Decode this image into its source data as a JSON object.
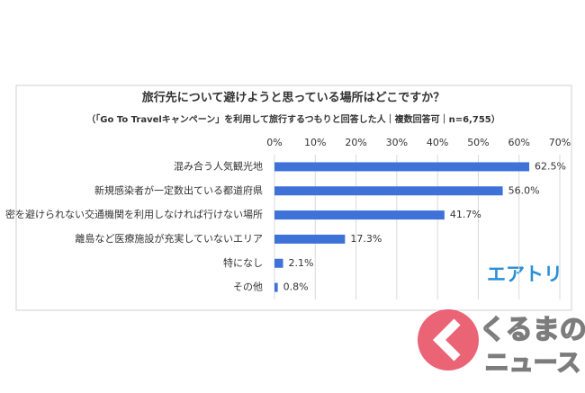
{
  "chart_data": {
    "type": "hbar",
    "title": "旅行先について避けようと思っている場所はどこですか？",
    "subtitle": "（「Go To Travelキャンペーン」を利用して旅行するつもりと回答した人｜複数回答可｜n=6,755）",
    "categories": [
      "混み合う人気観光地",
      "新規感染者が一定数出ている都道府県",
      "密を避けられない交通機関を利用しなければ行けない場所",
      "離島など医療施設が充実していないエリア",
      "特になし",
      "その他"
    ],
    "values": [
      62.5,
      56.0,
      41.7,
      17.3,
      2.1,
      0.8
    ],
    "value_labels": [
      "62.5%",
      "56.0%",
      "41.7%",
      "17.3%",
      "2.1%",
      "0.8%"
    ],
    "color": "#3f72d8",
    "xlim": [
      0,
      70
    ],
    "xticks": [
      {
        "value": 0,
        "label": "0%"
      },
      {
        "value": 10,
        "label": "10%"
      },
      {
        "value": 20,
        "label": "20%"
      },
      {
        "value": 30,
        "label": "30%"
      },
      {
        "value": 40,
        "label": "40%"
      },
      {
        "value": 50,
        "label": "50%"
      },
      {
        "value": 60,
        "label": "60%"
      },
      {
        "value": 70,
        "label": "70%"
      }
    ],
    "grid": true
  },
  "brand": "エアトリ",
  "watermark": [
    "くるまの",
    "ニュース"
  ]
}
